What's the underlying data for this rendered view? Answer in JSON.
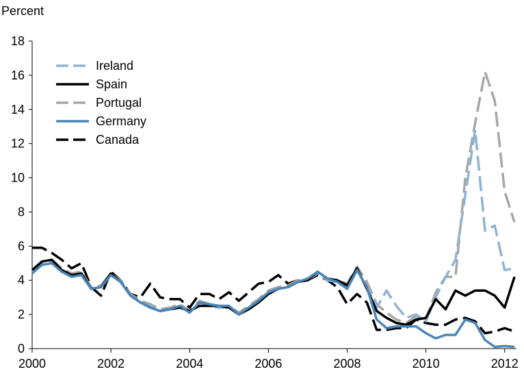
{
  "chart_data": {
    "type": "line",
    "y_axis_label": "Percent",
    "x": [
      2000,
      2000.25,
      2000.5,
      2000.75,
      2001,
      2001.25,
      2001.5,
      2001.75,
      2002,
      2002.25,
      2002.5,
      2002.75,
      2003,
      2003.25,
      2003.5,
      2003.75,
      2004,
      2004.25,
      2004.5,
      2004.75,
      2005,
      2005.25,
      2005.5,
      2005.75,
      2006,
      2006.25,
      2006.5,
      2006.75,
      2007,
      2007.25,
      2007.5,
      2007.75,
      2008,
      2008.25,
      2008.5,
      2008.75,
      2009,
      2009.25,
      2009.5,
      2009.75,
      2010,
      2010.25,
      2010.5,
      2010.75,
      2011,
      2011.25,
      2011.5,
      2011.75,
      2012,
      2012.25
    ],
    "xlim": [
      2000,
      2012.3
    ],
    "xticks": [
      2000,
      2002,
      2004,
      2006,
      2008,
      2010,
      2012
    ],
    "ylim": [
      0,
      18
    ],
    "yticks": [
      0,
      2,
      4,
      6,
      8,
      10,
      12,
      14,
      16,
      18
    ],
    "grid": false,
    "legend_position": "upper-left",
    "series": [
      {
        "name": "Ireland",
        "color": "#8db4d3",
        "dashed": true,
        "values": [
          4.5,
          5.0,
          5.1,
          4.6,
          4.3,
          4.4,
          3.5,
          3.6,
          4.3,
          3.9,
          3.1,
          2.7,
          2.5,
          2.2,
          2.3,
          2.5,
          2.1,
          2.7,
          2.5,
          2.4,
          2.4,
          2.0,
          2.4,
          2.8,
          3.3,
          3.5,
          3.6,
          3.9,
          4.0,
          4.4,
          4.0,
          3.9,
          3.6,
          4.6,
          3.6,
          2.4,
          3.4,
          2.5,
          1.8,
          2.0,
          1.6,
          3.0,
          4.2,
          5.2,
          9.0,
          12.8,
          6.9,
          7.2,
          4.6,
          4.7
        ]
      },
      {
        "name": "Spain",
        "color": "#000000",
        "dashed": false,
        "values": [
          4.6,
          5.1,
          5.2,
          4.6,
          4.3,
          4.4,
          3.5,
          3.6,
          4.4,
          3.9,
          3.1,
          2.7,
          2.4,
          2.2,
          2.3,
          2.4,
          2.2,
          2.5,
          2.5,
          2.5,
          2.4,
          2.0,
          2.3,
          2.7,
          3.2,
          3.5,
          3.6,
          3.9,
          4.0,
          4.5,
          4.1,
          4.0,
          3.7,
          4.7,
          3.5,
          2.2,
          1.8,
          1.5,
          1.4,
          1.7,
          1.8,
          2.9,
          2.3,
          3.4,
          3.1,
          3.4,
          3.4,
          3.1,
          2.4,
          4.2
        ]
      },
      {
        "name": "Portugal",
        "color": "#a6a6a6",
        "dashed": true,
        "values": [
          4.6,
          5.1,
          5.2,
          4.7,
          4.4,
          4.5,
          3.6,
          3.7,
          4.4,
          4.0,
          3.2,
          2.8,
          2.6,
          2.3,
          2.4,
          2.6,
          2.2,
          2.8,
          2.6,
          2.5,
          2.5,
          2.1,
          2.5,
          2.9,
          3.4,
          3.6,
          3.7,
          4.0,
          4.1,
          4.5,
          4.1,
          4.0,
          3.8,
          4.8,
          3.9,
          2.6,
          2.1,
          1.7,
          1.5,
          1.9,
          1.7,
          3.3,
          4.2,
          4.2,
          10.0,
          13.2,
          16.2,
          14.5,
          9.2,
          7.4
        ]
      },
      {
        "name": "Germany",
        "color": "#4a86b8",
        "dashed": false,
        "values": [
          4.4,
          4.9,
          5.0,
          4.5,
          4.2,
          4.3,
          3.5,
          3.6,
          4.3,
          3.9,
          3.1,
          2.7,
          2.4,
          2.2,
          2.3,
          2.5,
          2.1,
          2.7,
          2.6,
          2.5,
          2.5,
          2.0,
          2.4,
          2.8,
          3.3,
          3.5,
          3.6,
          3.9,
          4.1,
          4.5,
          4.1,
          3.9,
          3.5,
          4.6,
          3.6,
          1.7,
          1.2,
          1.3,
          1.3,
          1.3,
          0.9,
          0.6,
          0.8,
          0.8,
          1.7,
          1.5,
          0.5,
          0.1,
          0.15,
          0.1
        ]
      },
      {
        "name": "Canada",
        "color": "#000000",
        "dashed": true,
        "values": [
          5.9,
          5.9,
          5.6,
          5.2,
          4.7,
          5.0,
          3.6,
          3.1,
          4.5,
          4.0,
          3.2,
          3.0,
          3.8,
          3.0,
          2.9,
          2.9,
          2.4,
          3.2,
          3.2,
          2.9,
          3.3,
          2.8,
          3.3,
          3.8,
          3.9,
          4.3,
          3.8,
          4.0,
          4.0,
          4.3,
          4.0,
          3.6,
          2.6,
          3.2,
          2.7,
          1.1,
          1.1,
          1.2,
          1.2,
          1.7,
          1.5,
          1.4,
          1.4,
          1.7,
          1.8,
          1.6,
          0.9,
          1.0,
          1.2,
          1.0
        ]
      }
    ]
  }
}
